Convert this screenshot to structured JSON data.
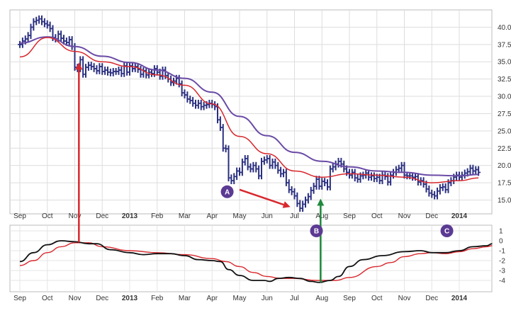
{
  "chart_data": [
    {
      "panel": "price",
      "type": "ohlc",
      "y_ticks": [
        "40.0",
        "37.5",
        "35.0",
        "32.5",
        "30.0",
        "27.5",
        "25.0",
        "22.5",
        "20.0",
        "17.5",
        "15.0"
      ],
      "ylim": [
        13.0,
        42.5
      ],
      "x_ticks": [
        {
          "label": "Sep",
          "month": 0,
          "bold": false
        },
        {
          "label": "Oct",
          "month": 1,
          "bold": false
        },
        {
          "label": "Nov",
          "month": 2,
          "bold": false
        },
        {
          "label": "Dec",
          "month": 3,
          "bold": false
        },
        {
          "label": "2013",
          "month": 4,
          "bold": true
        },
        {
          "label": "Feb",
          "month": 5,
          "bold": false
        },
        {
          "label": "Mar",
          "month": 6,
          "bold": false
        },
        {
          "label": "Apr",
          "month": 7,
          "bold": false
        },
        {
          "label": "May",
          "month": 8,
          "bold": false
        },
        {
          "label": "Jun",
          "month": 9,
          "bold": false
        },
        {
          "label": "Jul",
          "month": 10,
          "bold": false
        },
        {
          "label": "Aug",
          "month": 11,
          "bold": false
        },
        {
          "label": "Sep",
          "month": 12,
          "bold": false
        },
        {
          "label": "Oct",
          "month": 13,
          "bold": false
        },
        {
          "label": "Nov",
          "month": 14,
          "bold": false
        },
        {
          "label": "Dec",
          "month": 15,
          "bold": false
        },
        {
          "label": "2014",
          "month": 16,
          "bold": true
        }
      ],
      "close_series": [
        [
          0.0,
          37.5
        ],
        [
          0.1,
          38.0
        ],
        [
          0.2,
          38.3
        ],
        [
          0.3,
          38.8
        ],
        [
          0.4,
          40.0
        ],
        [
          0.5,
          40.8
        ],
        [
          0.6,
          41.0
        ],
        [
          0.7,
          41.2
        ],
        [
          0.8,
          40.8
        ],
        [
          0.9,
          40.5
        ],
        [
          1.0,
          40.3
        ],
        [
          1.1,
          39.8
        ],
        [
          1.2,
          38.5
        ],
        [
          1.3,
          38.3
        ],
        [
          1.4,
          39.0
        ],
        [
          1.5,
          38.4
        ],
        [
          1.6,
          38.0
        ],
        [
          1.7,
          37.8
        ],
        [
          1.8,
          38.2
        ],
        [
          1.9,
          37.2
        ],
        [
          2.0,
          34.2
        ],
        [
          2.1,
          34.0
        ],
        [
          2.2,
          35.3
        ],
        [
          2.3,
          33.2
        ],
        [
          2.4,
          34.2
        ],
        [
          2.5,
          34.5
        ],
        [
          2.6,
          34.3
        ],
        [
          2.7,
          34.0
        ],
        [
          2.8,
          33.7
        ],
        [
          2.9,
          34.3
        ],
        [
          3.0,
          33.6
        ],
        [
          3.1,
          33.8
        ],
        [
          3.2,
          33.5
        ],
        [
          3.3,
          33.4
        ],
        [
          3.4,
          33.6
        ],
        [
          3.5,
          33.6
        ],
        [
          3.6,
          33.8
        ],
        [
          3.7,
          33.3
        ],
        [
          3.8,
          34.4
        ],
        [
          3.9,
          33.5
        ],
        [
          4.0,
          34.4
        ],
        [
          4.1,
          34.0
        ],
        [
          4.2,
          34.3
        ],
        [
          4.3,
          33.9
        ],
        [
          4.4,
          33.2
        ],
        [
          4.5,
          33.7
        ],
        [
          4.6,
          33.1
        ],
        [
          4.7,
          33.5
        ],
        [
          4.8,
          33.3
        ],
        [
          4.9,
          34.0
        ],
        [
          5.0,
          33.5
        ],
        [
          5.1,
          32.9
        ],
        [
          5.2,
          33.8
        ],
        [
          5.3,
          33.0
        ],
        [
          5.4,
          32.5
        ],
        [
          5.5,
          32.0
        ],
        [
          5.6,
          32.2
        ],
        [
          5.7,
          32.6
        ],
        [
          5.8,
          31.8
        ],
        [
          5.9,
          30.5
        ],
        [
          6.0,
          30.2
        ],
        [
          6.1,
          29.6
        ],
        [
          6.2,
          29.4
        ],
        [
          6.3,
          29.0
        ],
        [
          6.4,
          28.7
        ],
        [
          6.5,
          29.0
        ],
        [
          6.6,
          28.5
        ],
        [
          6.7,
          28.7
        ],
        [
          6.8,
          28.8
        ],
        [
          6.9,
          29.0
        ],
        [
          7.0,
          28.8
        ],
        [
          7.1,
          28.5
        ],
        [
          7.2,
          26.6
        ],
        [
          7.3,
          25.5
        ],
        [
          7.4,
          22.5
        ],
        [
          7.5,
          22.4
        ],
        [
          7.6,
          18.2
        ],
        [
          7.7,
          17.8
        ],
        [
          7.8,
          18.4
        ],
        [
          7.9,
          19.2
        ],
        [
          8.0,
          19.0
        ],
        [
          8.1,
          20.5
        ],
        [
          8.2,
          21.0
        ],
        [
          8.3,
          19.8
        ],
        [
          8.4,
          19.5
        ],
        [
          8.5,
          20.0
        ],
        [
          8.6,
          19.5
        ],
        [
          8.7,
          18.5
        ],
        [
          8.8,
          20.6
        ],
        [
          8.9,
          20.8
        ],
        [
          9.0,
          21.0
        ],
        [
          9.1,
          20.0
        ],
        [
          9.2,
          20.5
        ],
        [
          9.3,
          20.0
        ],
        [
          9.4,
          19.3
        ],
        [
          9.5,
          18.8
        ],
        [
          9.6,
          19.0
        ],
        [
          9.7,
          17.5
        ],
        [
          9.8,
          16.5
        ],
        [
          9.9,
          16.2
        ],
        [
          10.0,
          15.6
        ],
        [
          10.1,
          14.5
        ],
        [
          10.2,
          13.8
        ],
        [
          10.3,
          14.4
        ],
        [
          10.4,
          15.0
        ],
        [
          10.5,
          15.5
        ],
        [
          10.6,
          16.4
        ],
        [
          10.7,
          17.0
        ],
        [
          10.8,
          18.0
        ],
        [
          10.9,
          17.0
        ],
        [
          11.0,
          17.7
        ],
        [
          11.1,
          17.5
        ],
        [
          11.2,
          16.9
        ],
        [
          11.3,
          19.5
        ],
        [
          11.4,
          19.8
        ],
        [
          11.5,
          20.2
        ],
        [
          11.6,
          20.6
        ],
        [
          11.7,
          20.2
        ],
        [
          11.8,
          19.5
        ],
        [
          11.9,
          19.0
        ],
        [
          12.0,
          18.6
        ],
        [
          12.1,
          19.0
        ],
        [
          12.2,
          18.2
        ],
        [
          12.3,
          18.0
        ],
        [
          12.4,
          18.5
        ],
        [
          12.5,
          18.6
        ],
        [
          12.6,
          18.9
        ],
        [
          12.7,
          18.3
        ],
        [
          12.8,
          18.5
        ],
        [
          12.9,
          18.1
        ],
        [
          13.0,
          18.3
        ],
        [
          13.1,
          17.8
        ],
        [
          13.2,
          18.6
        ],
        [
          13.3,
          18.4
        ],
        [
          13.4,
          17.6
        ],
        [
          13.5,
          18.6
        ],
        [
          13.6,
          19.0
        ],
        [
          13.7,
          19.4
        ],
        [
          13.8,
          19.6
        ],
        [
          13.9,
          20.0
        ],
        [
          14.0,
          18.6
        ],
        [
          14.1,
          18.5
        ],
        [
          14.2,
          18.5
        ],
        [
          14.3,
          18.3
        ],
        [
          14.4,
          18.4
        ],
        [
          14.5,
          17.6
        ],
        [
          14.6,
          17.8
        ],
        [
          14.7,
          17.3
        ],
        [
          14.8,
          16.6
        ],
        [
          14.9,
          16.0
        ],
        [
          15.0,
          15.8
        ],
        [
          15.1,
          15.6
        ],
        [
          15.2,
          16.3
        ],
        [
          15.3,
          16.8
        ],
        [
          15.4,
          16.9
        ],
        [
          15.5,
          16.5
        ],
        [
          15.6,
          17.5
        ],
        [
          15.7,
          17.8
        ],
        [
          15.8,
          18.3
        ],
        [
          15.9,
          18.6
        ],
        [
          16.0,
          18.3
        ],
        [
          16.1,
          18.6
        ],
        [
          16.2,
          18.9
        ],
        [
          16.3,
          19.1
        ],
        [
          16.4,
          19.6
        ],
        [
          16.5,
          19.2
        ],
        [
          16.6,
          19.4
        ],
        [
          16.7,
          19.0
        ]
      ],
      "ma_slow": [
        [
          0,
          37.7
        ],
        [
          1,
          38.6
        ],
        [
          2,
          37.2
        ],
        [
          3,
          35.8
        ],
        [
          4,
          34.9
        ],
        [
          5,
          33.8
        ],
        [
          6,
          32.6
        ],
        [
          7,
          30.6
        ],
        [
          8,
          27.1
        ],
        [
          9,
          24.3
        ],
        [
          10,
          21.9
        ],
        [
          11,
          20.6
        ],
        [
          12,
          19.8
        ],
        [
          13,
          19.2
        ],
        [
          14,
          19.0
        ],
        [
          15,
          18.6
        ],
        [
          16,
          18.5
        ],
        [
          16.7,
          18.7
        ]
      ],
      "ma_fast": [
        [
          0,
          35.7
        ],
        [
          1,
          38.5
        ],
        [
          2,
          36.5
        ],
        [
          3,
          35.0
        ],
        [
          4,
          34.3
        ],
        [
          5,
          33.1
        ],
        [
          6,
          31.6
        ],
        [
          7,
          28.9
        ],
        [
          8,
          24.2
        ],
        [
          9,
          21.7
        ],
        [
          10,
          19.2
        ],
        [
          11,
          18.3
        ],
        [
          12,
          18.8
        ],
        [
          13,
          18.6
        ],
        [
          14,
          18.3
        ],
        [
          15,
          17.5
        ],
        [
          16,
          17.8
        ],
        [
          16.7,
          18.2
        ]
      ],
      "colors": {
        "bars": "#2a2f7f",
        "ma_slow": "#6a4ba6",
        "ma_fast": "#d8282e",
        "grid": "#dddddd"
      },
      "annotations": [
        {
          "type": "arrow",
          "color": "#d8282e",
          "from": [
            8.0,
            16.5
          ],
          "to": [
            9.85,
            14.0
          ]
        },
        {
          "type": "badge",
          "label": "A",
          "at": [
            7.55,
            16.2
          ]
        }
      ]
    },
    {
      "panel": "oscillator",
      "type": "line",
      "y_ticks": [
        "1",
        "0",
        "-1",
        "-2",
        "-3",
        "-4"
      ],
      "ylim": [
        -4.4,
        1.4
      ],
      "line_black": [
        [
          0,
          -2.1
        ],
        [
          0.5,
          -1.2
        ],
        [
          1,
          -0.4
        ],
        [
          1.5,
          0.0
        ],
        [
          2,
          -0.1
        ],
        [
          2.5,
          -0.3
        ],
        [
          2.8,
          -0.3
        ],
        [
          3.3,
          -0.9
        ],
        [
          4,
          -1.2
        ],
        [
          4.5,
          -1.4
        ],
        [
          5,
          -1.3
        ],
        [
          5.5,
          -1.3
        ],
        [
          6,
          -1.5
        ],
        [
          6.5,
          -1.9
        ],
        [
          7,
          -2.0
        ],
        [
          7.3,
          -2.1
        ],
        [
          7.6,
          -2.9
        ],
        [
          8.0,
          -3.5
        ],
        [
          8.5,
          -4.0
        ],
        [
          8.9,
          -4.0
        ],
        [
          9.1,
          -4.1
        ],
        [
          9.4,
          -3.8
        ],
        [
          9.8,
          -3.7
        ],
        [
          10.2,
          -3.8
        ],
        [
          10.6,
          -4.1
        ],
        [
          10.9,
          -4.2
        ],
        [
          11.3,
          -4.0
        ],
        [
          11.6,
          -3.6
        ],
        [
          12.0,
          -2.6
        ],
        [
          12.5,
          -1.9
        ],
        [
          13.2,
          -1.5
        ],
        [
          14.0,
          -1.1
        ],
        [
          14.6,
          -1.0
        ],
        [
          15.0,
          -1.2
        ],
        [
          15.5,
          -1.2
        ],
        [
          16.0,
          -1.0
        ],
        [
          16.5,
          -0.6
        ],
        [
          17.0,
          -0.5
        ],
        [
          17.2,
          -0.3
        ]
      ],
      "line_red": [
        [
          0,
          -2.5
        ],
        [
          0.5,
          -2.0
        ],
        [
          1,
          -1.2
        ],
        [
          1.5,
          -0.6
        ],
        [
          2,
          -0.2
        ],
        [
          2.5,
          -0.2
        ],
        [
          3,
          -0.6
        ],
        [
          4,
          -1.0
        ],
        [
          5,
          -1.2
        ],
        [
          6,
          -1.4
        ],
        [
          7,
          -1.8
        ],
        [
          7.5,
          -2.1
        ],
        [
          8,
          -2.6
        ],
        [
          8.5,
          -3.2
        ],
        [
          9,
          -3.6
        ],
        [
          9.5,
          -3.8
        ],
        [
          10,
          -3.8
        ],
        [
          10.8,
          -4.0
        ],
        [
          11.5,
          -4.0
        ],
        [
          12,
          -3.7
        ],
        [
          13,
          -2.6
        ],
        [
          13.5,
          -2.2
        ],
        [
          14,
          -1.6
        ],
        [
          14.6,
          -1.3
        ],
        [
          15,
          -1.2
        ],
        [
          15.5,
          -1.3
        ],
        [
          16,
          -1.1
        ],
        [
          16.5,
          -0.8
        ],
        [
          17.0,
          -0.6
        ],
        [
          17.2,
          -0.5
        ]
      ],
      "colors": {
        "line_black": "#111111",
        "line_red": "#d8282e"
      },
      "annotations": [
        {
          "type": "badge",
          "label": "B",
          "at": [
            10.8,
            1.0
          ]
        },
        {
          "type": "badge",
          "label": "C",
          "at": [
            15.55,
            1.0
          ]
        }
      ]
    }
  ],
  "cross_annotations": [
    {
      "type": "arrow",
      "color": "#d8282e",
      "direction": "up",
      "month": 2.15,
      "from_osc": -0.15,
      "to_price": 34.9
    },
    {
      "type": "arrow",
      "color": "#1f8a3c",
      "direction": "up",
      "month": 10.95,
      "from_osc": -4.2,
      "to_price": 15.2
    }
  ],
  "badge_color": "#5b3a93"
}
